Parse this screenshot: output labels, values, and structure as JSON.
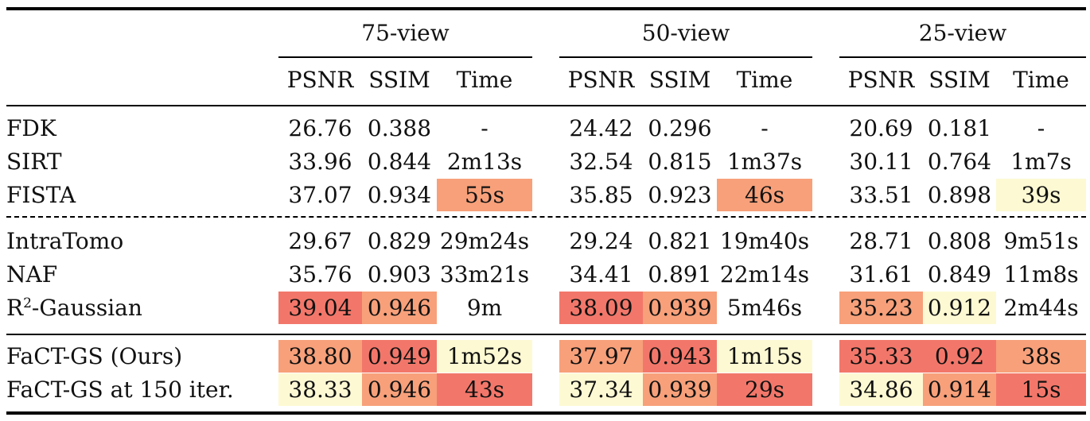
{
  "colors": {
    "red": "#f2776a",
    "orange": "#f7a07a",
    "yellow": "#fdf9d3"
  },
  "groups": [
    "75-view",
    "50-view",
    "25-view"
  ],
  "metric_headers": [
    "PSNR",
    "SSIM",
    "Time"
  ],
  "rows": [
    {
      "label": "FDK",
      "cells": [
        {
          "v": "26.76"
        },
        {
          "v": "0.388"
        },
        {
          "v": "-"
        },
        {
          "v": "24.42"
        },
        {
          "v": "0.296"
        },
        {
          "v": "-"
        },
        {
          "v": "20.69"
        },
        {
          "v": "0.181"
        },
        {
          "v": "-"
        }
      ]
    },
    {
      "label": "SIRT",
      "cells": [
        {
          "v": "33.96"
        },
        {
          "v": "0.844"
        },
        {
          "v": "2m13s"
        },
        {
          "v": "32.54"
        },
        {
          "v": "0.815"
        },
        {
          "v": "1m37s"
        },
        {
          "v": "30.11"
        },
        {
          "v": "0.764"
        },
        {
          "v": "1m7s"
        }
      ]
    },
    {
      "label": "FISTA",
      "cells": [
        {
          "v": "37.07"
        },
        {
          "v": "0.934"
        },
        {
          "v": "55s",
          "hl": "orange"
        },
        {
          "v": "35.85"
        },
        {
          "v": "0.923"
        },
        {
          "v": "46s",
          "hl": "orange"
        },
        {
          "v": "33.51"
        },
        {
          "v": "0.898"
        },
        {
          "v": "39s",
          "hl": "yellow"
        }
      ]
    },
    {
      "label": "IntraTomo",
      "cells": [
        {
          "v": "29.67"
        },
        {
          "v": "0.829"
        },
        {
          "v": "29m24s"
        },
        {
          "v": "29.24"
        },
        {
          "v": "0.821"
        },
        {
          "v": "19m40s"
        },
        {
          "v": "28.71"
        },
        {
          "v": "0.808"
        },
        {
          "v": "9m51s"
        }
      ]
    },
    {
      "label": "NAF",
      "cells": [
        {
          "v": "35.76"
        },
        {
          "v": "0.903"
        },
        {
          "v": "33m21s"
        },
        {
          "v": "34.41"
        },
        {
          "v": "0.891"
        },
        {
          "v": "22m14s"
        },
        {
          "v": "31.61"
        },
        {
          "v": "0.849"
        },
        {
          "v": "11m8s"
        }
      ]
    },
    {
      "label": "R",
      "label_sup": "2",
      "label_suffix": "-Gaussian",
      "cells": [
        {
          "v": "39.04",
          "hl": "red"
        },
        {
          "v": "0.946",
          "hl": "orange"
        },
        {
          "v": "9m"
        },
        {
          "v": "38.09",
          "hl": "red"
        },
        {
          "v": "0.939",
          "hl": "orange"
        },
        {
          "v": "5m46s"
        },
        {
          "v": "35.23",
          "hl": "orange"
        },
        {
          "v": "0.912",
          "hl": "yellow"
        },
        {
          "v": "2m44s"
        }
      ]
    },
    {
      "label": "FaCT-GS (Ours)",
      "cells": [
        {
          "v": "38.80",
          "hl": "orange"
        },
        {
          "v": "0.949",
          "hl": "red"
        },
        {
          "v": "1m52s",
          "hl": "yellow"
        },
        {
          "v": "37.97",
          "hl": "orange"
        },
        {
          "v": "0.943",
          "hl": "red"
        },
        {
          "v": "1m15s",
          "hl": "yellow"
        },
        {
          "v": "35.33",
          "hl": "red"
        },
        {
          "v": "0.92",
          "hl": "red"
        },
        {
          "v": "38s",
          "hl": "orange"
        }
      ]
    },
    {
      "label": "FaCT-GS at 150 iter.",
      "cells": [
        {
          "v": "38.33",
          "hl": "yellow"
        },
        {
          "v": "0.946",
          "hl": "orange"
        },
        {
          "v": "43s",
          "hl": "red"
        },
        {
          "v": "37.34",
          "hl": "yellow"
        },
        {
          "v": "0.939",
          "hl": "orange"
        },
        {
          "v": "29s",
          "hl": "red"
        },
        {
          "v": "34.86",
          "hl": "yellow"
        },
        {
          "v": "0.914",
          "hl": "orange"
        },
        {
          "v": "15s",
          "hl": "red"
        }
      ]
    }
  ]
}
